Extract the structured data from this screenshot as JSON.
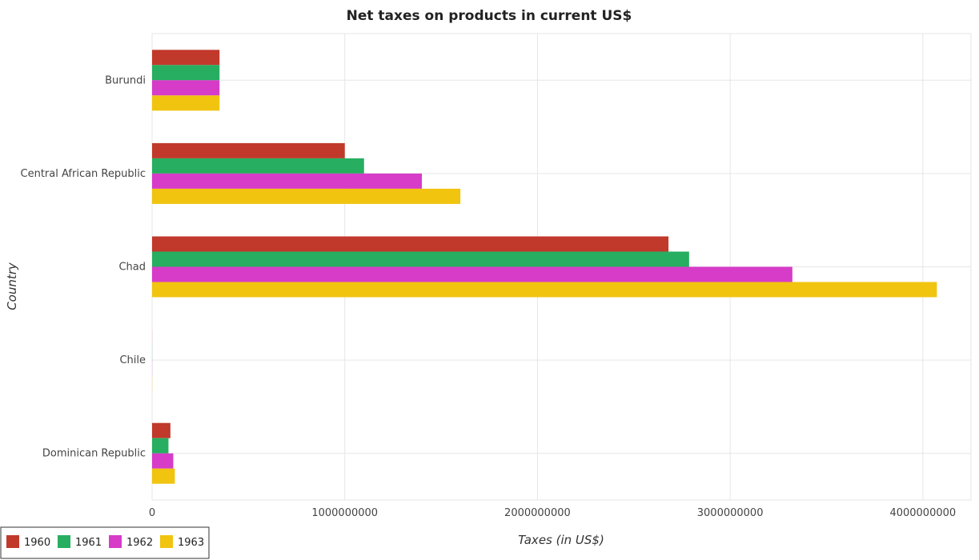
{
  "chart_data": {
    "type": "bar",
    "orientation": "horizontal",
    "title": "Net taxes on products in current US$",
    "xlabel": "Taxes (in US$)",
    "ylabel": "Country",
    "categories": [
      "Burundi",
      "Central African Republic",
      "Chad",
      "Chile",
      "Dominican Republic"
    ],
    "series": [
      {
        "name": "1960",
        "color": "#c0392b",
        "values": [
          350000000,
          1000000000,
          2680000000,
          300000,
          95000000
        ]
      },
      {
        "name": "1961",
        "color": "#27ae60",
        "values": [
          350000000,
          1100000000,
          2787000000,
          400000,
          85000000
        ]
      },
      {
        "name": "1962",
        "color": "#d63cc8",
        "values": [
          350000000,
          1400000000,
          3323000000,
          500000,
          110000000
        ]
      },
      {
        "name": "1963",
        "color": "#f1c40f",
        "values": [
          350000000,
          1600000000,
          4073000000,
          600000,
          118000000
        ]
      }
    ],
    "xlim": [
      0,
      4250000000
    ],
    "xticks": [
      0,
      1000000000,
      2000000000,
      3000000000,
      4000000000
    ],
    "xtick_labels": [
      "0",
      "1000000000",
      "2000000000",
      "3000000000",
      "4000000000"
    ],
    "grid": true,
    "legend_position": "bottom-left"
  }
}
